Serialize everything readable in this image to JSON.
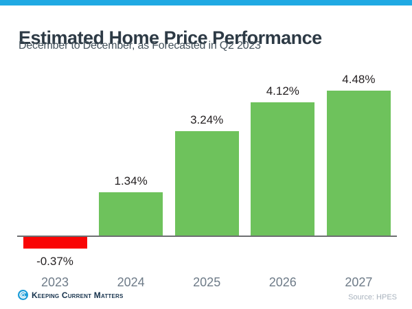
{
  "header": {
    "title": "Estimated Home Price Performance",
    "subtitle": "December to December, as Forecasted in Q2 2023"
  },
  "chart_data": {
    "type": "bar",
    "title": "Estimated Home Price Performance",
    "subtitle": "December to December, as Forecasted in Q2 2023",
    "categories": [
      "2023",
      "2024",
      "2025",
      "2026",
      "2027"
    ],
    "values": [
      -0.37,
      1.34,
      3.24,
      4.12,
      4.48
    ],
    "value_labels": [
      "-0.37%",
      "1.34%",
      "3.24%",
      "4.12%",
      "4.48%"
    ],
    "xlabel": "",
    "ylabel": "",
    "ylim": [
      -1,
      5
    ],
    "grid": false,
    "legend": false,
    "colors": {
      "positive": "#6ec25c",
      "negative": "#f90505",
      "axis_line": "#6d6e71"
    }
  },
  "footer": {
    "brand": "Keeping Current Matters",
    "source": "Source: HPES"
  },
  "colors": {
    "accent_blue": "#20a9e3",
    "title_text": "#2d3a45",
    "subtitle_text": "#44525c",
    "logo_blue": "#1b9cd8"
  }
}
